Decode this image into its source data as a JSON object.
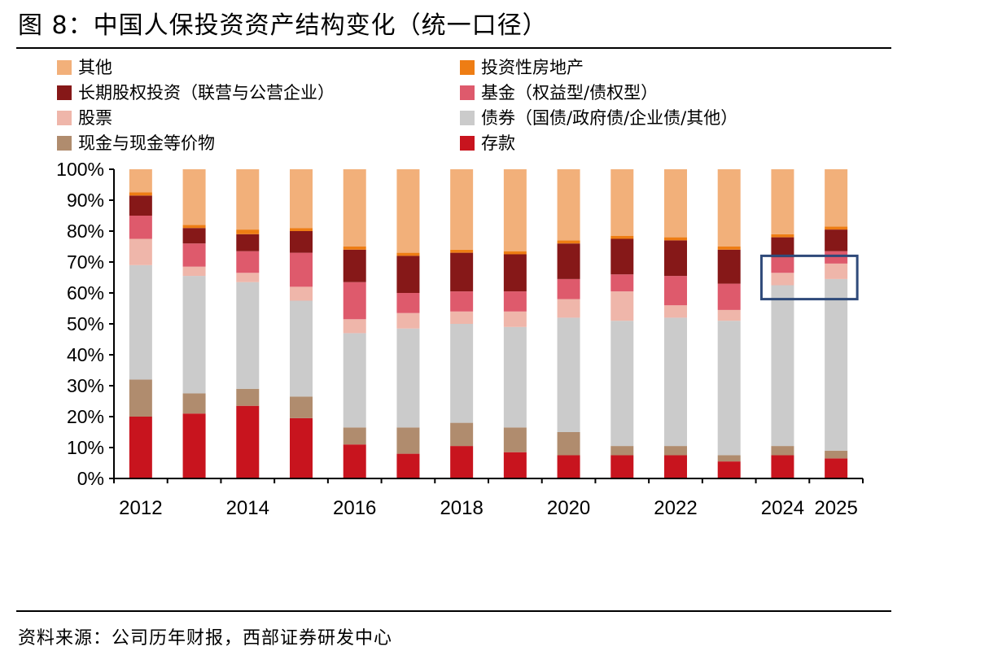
{
  "header": {
    "title": "图 8：中国人保投资资产结构变化（统一口径）"
  },
  "footer": {
    "source": "资料来源：公司历年财报，西部证券研发中心"
  },
  "chart_data": {
    "type": "bar",
    "stacked": true,
    "categories": [
      "2012",
      "2013",
      "2014",
      "2015",
      "2016",
      "2017",
      "2018",
      "2019",
      "2020",
      "2021",
      "2022",
      "2023",
      "2024",
      "2025"
    ],
    "x_tick_labels": [
      "2012",
      "",
      "2014",
      "",
      "2016",
      "",
      "2018",
      "",
      "2020",
      "",
      "2022",
      "",
      "2024",
      "2025"
    ],
    "ylim": [
      0,
      100
    ],
    "yticks": [
      "0%",
      "10%",
      "20%",
      "30%",
      "40%",
      "50%",
      "60%",
      "70%",
      "80%",
      "90%",
      "100%"
    ],
    "grid": false,
    "legend_position": "top",
    "highlight_box": {
      "categories": [
        "2024",
        "2025"
      ],
      "range": [
        58,
        72
      ],
      "color": "#2f4a7a"
    },
    "series": [
      {
        "name": "存款",
        "color": "#c8141e",
        "values": [
          20,
          21,
          23.5,
          19.5,
          11,
          8,
          10.5,
          8.5,
          7.5,
          7.5,
          7.5,
          5.5,
          7.5,
          6.5
        ]
      },
      {
        "name": "现金与现金等价物",
        "color": "#b08c6e",
        "values": [
          12,
          6.5,
          5.5,
          7,
          5.5,
          8.5,
          7.5,
          8,
          7.5,
          3,
          3,
          2,
          3,
          2.5
        ]
      },
      {
        "name": "债券（国债/政府债/企业债/其他）",
        "color": "#cbcbcb",
        "values": [
          37,
          38,
          34.5,
          31,
          30.5,
          32,
          32,
          32.5,
          37,
          40.5,
          41.5,
          43.5,
          52,
          55.5
        ]
      },
      {
        "name": "股票",
        "color": "#efb6aa",
        "values": [
          8.5,
          3,
          3,
          4.5,
          4.5,
          5,
          4,
          5,
          6,
          9.5,
          4,
          3.5,
          4,
          5
        ]
      },
      {
        "name": "基金（权益型/债权型）",
        "color": "#de5a6c",
        "values": [
          7.5,
          7.5,
          7,
          11,
          12,
          6.5,
          6.5,
          6.5,
          6.5,
          5.5,
          9.5,
          8.5,
          5,
          4
        ]
      },
      {
        "name": "长期股权投资（联营与公营企业）",
        "color": "#861818",
        "values": [
          6.5,
          5,
          5.5,
          7,
          10.5,
          12,
          12.5,
          12,
          11.5,
          11.5,
          11.5,
          11,
          6.5,
          7
        ]
      },
      {
        "name": "投资性房地产",
        "color": "#ee7d14",
        "values": [
          1,
          1,
          1.5,
          1,
          1,
          1,
          1,
          1,
          1,
          1,
          1,
          1,
          1,
          1
        ]
      },
      {
        "name": "其他",
        "color": "#f2b07a",
        "values": [
          7.5,
          18,
          19.5,
          19,
          25,
          27,
          26,
          26.5,
          23,
          21.5,
          22,
          25,
          21,
          18.5
        ]
      }
    ]
  }
}
